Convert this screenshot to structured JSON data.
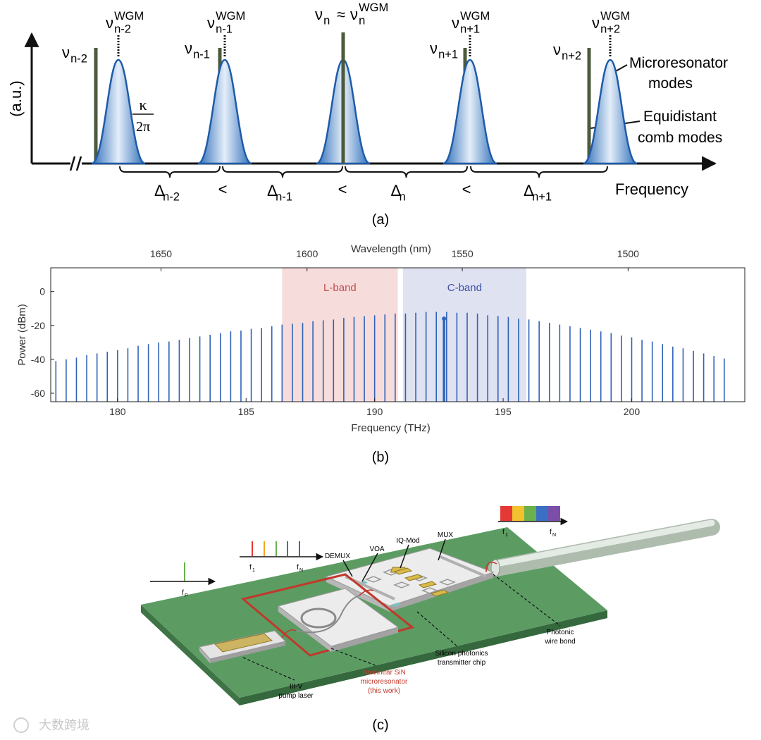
{
  "panel_a": {
    "y_axis_label": "(a.u.)",
    "x_axis_label": "Frequency",
    "comb_labels": [
      {
        "symbol": "ν",
        "sub": "n-2"
      },
      {
        "symbol": "ν",
        "sub": "n-1"
      },
      {
        "symbol": "ν",
        "sub": "n+1"
      },
      {
        "symbol": "ν",
        "sub": "n+2"
      }
    ],
    "wgm_labels": [
      {
        "symbol": "ν",
        "sub": "n-2",
        "sup": "WGM"
      },
      {
        "symbol": "ν",
        "sub": "n-1",
        "sup": "WGM"
      },
      {
        "symbol": "ν",
        "sub": "n+1",
        "sup": "WGM"
      },
      {
        "symbol": "ν",
        "sub": "n+2",
        "sup": "WGM"
      }
    ],
    "center_label": {
      "comb_symbol": "ν",
      "comb_sub": "n",
      "relation": "≈",
      "wgm_symbol": "ν",
      "wgm_sub": "n",
      "wgm_sup": "WGM"
    },
    "linewidth": {
      "numerator": "κ",
      "denominator": "2π"
    },
    "spacings": [
      {
        "symbol": "Δ",
        "sub": "n-2"
      },
      {
        "symbol": "Δ",
        "sub": "n-1"
      },
      {
        "symbol": "Δ",
        "sub": "n"
      },
      {
        "symbol": "Δ",
        "sub": "n+1"
      }
    ],
    "inequalities": [
      "<",
      "<",
      "<"
    ],
    "legend": {
      "microresonator": [
        "Microresonator",
        "modes"
      ],
      "comb": [
        "Equidistant",
        "comb modes"
      ]
    }
  },
  "chart_data": {
    "type": "stem",
    "x_label": "Frequency (THz)",
    "y_label": "Power (dBm)",
    "x2_label": "Wavelength (nm)",
    "xlim": [
      177.4,
      204.4
    ],
    "xticks": [
      180,
      185,
      190,
      195,
      200
    ],
    "x2ticks": [
      {
        "value": 181.69,
        "label": "1650"
      },
      {
        "value": 187.37,
        "label": "1600"
      },
      {
        "value": 193.41,
        "label": "1550"
      },
      {
        "value": 199.86,
        "label": "1500"
      }
    ],
    "ylim": [
      -65,
      14
    ],
    "yticks": [
      0,
      -20,
      -40,
      -60
    ],
    "color": "#2f62b8",
    "bands": [
      {
        "name": "L-band",
        "start": 186.4,
        "end": 190.9,
        "color": "#f7dcdc",
        "text_color": "#c0504d"
      },
      {
        "name": "C-band",
        "start": 191.1,
        "end": 195.9,
        "color": "#dfe2f1",
        "text_color": "#3f51a8"
      }
    ],
    "x": [
      177.6,
      178.0,
      178.4,
      178.8,
      179.2,
      179.6,
      180.0,
      180.4,
      180.8,
      181.2,
      181.6,
      182.0,
      182.4,
      182.8,
      183.2,
      183.6,
      184.0,
      184.4,
      184.8,
      185.2,
      185.6,
      186.0,
      186.4,
      186.8,
      187.2,
      187.6,
      188.0,
      188.4,
      188.8,
      189.2,
      189.6,
      190.0,
      190.4,
      190.8,
      191.2,
      191.6,
      192.0,
      192.4,
      192.8,
      193.2,
      193.6,
      194.0,
      194.4,
      194.8,
      195.2,
      195.6,
      196.0,
      196.4,
      196.8,
      197.2,
      197.6,
      198.0,
      198.4,
      198.8,
      199.2,
      199.6,
      200.0,
      200.4,
      200.8,
      201.2,
      201.6,
      202.0,
      202.4,
      202.8,
      203.2,
      203.6
    ],
    "values": [
      -41,
      -40,
      -39,
      -37.5,
      -36.5,
      -35.5,
      -34.5,
      -33.5,
      -32,
      -31,
      -30,
      -29.5,
      -28.5,
      -27.5,
      -26.5,
      -25.5,
      -24.5,
      -23.5,
      -23,
      -22,
      -21.5,
      -20.5,
      -19.5,
      -19,
      -18.5,
      -17.5,
      -17,
      -16.5,
      -15.5,
      -15,
      -14.5,
      -14,
      -13.5,
      -13,
      -13,
      -12.5,
      -12,
      -12,
      -12,
      -12.5,
      -12.5,
      -13,
      -14,
      -14.5,
      -15,
      -16,
      -16.5,
      -17.5,
      -18.5,
      -19.5,
      -20.5,
      -21.5,
      -22.5,
      -23.5,
      -24.5,
      -26,
      -27,
      -28.5,
      -29.5,
      -31,
      -32.5,
      -33.5,
      -35,
      -36.5,
      -38,
      -39.5
    ],
    "pump": {
      "x": 192.7,
      "value": -16
    }
  },
  "panel_c": {
    "pump_spectrum": {
      "symbol": "f",
      "sub": "P"
    },
    "comb_spectrum": [
      {
        "symbol": "f",
        "sub": "1"
      },
      {
        "symbol": "f",
        "sub": "N"
      }
    ],
    "output_spectrum": [
      {
        "symbol": "f",
        "sub": "1"
      },
      {
        "symbol": "f",
        "sub": "N"
      }
    ],
    "components": [
      "DEMUX",
      "VOA",
      "IQ-Mod",
      "MUX"
    ],
    "callouts": {
      "laser": [
        "III-V",
        "pump laser"
      ],
      "microresonator": [
        "Nonlinear SiN",
        "microresonator",
        "(this work)"
      ],
      "chip": [
        "Silicon photonics",
        "transmitter chip"
      ],
      "wire_bond": [
        "Photonic",
        "wire bond"
      ]
    }
  },
  "captions": [
    "(a)",
    "(b)",
    "(c)"
  ],
  "watermark": "大数跨境"
}
